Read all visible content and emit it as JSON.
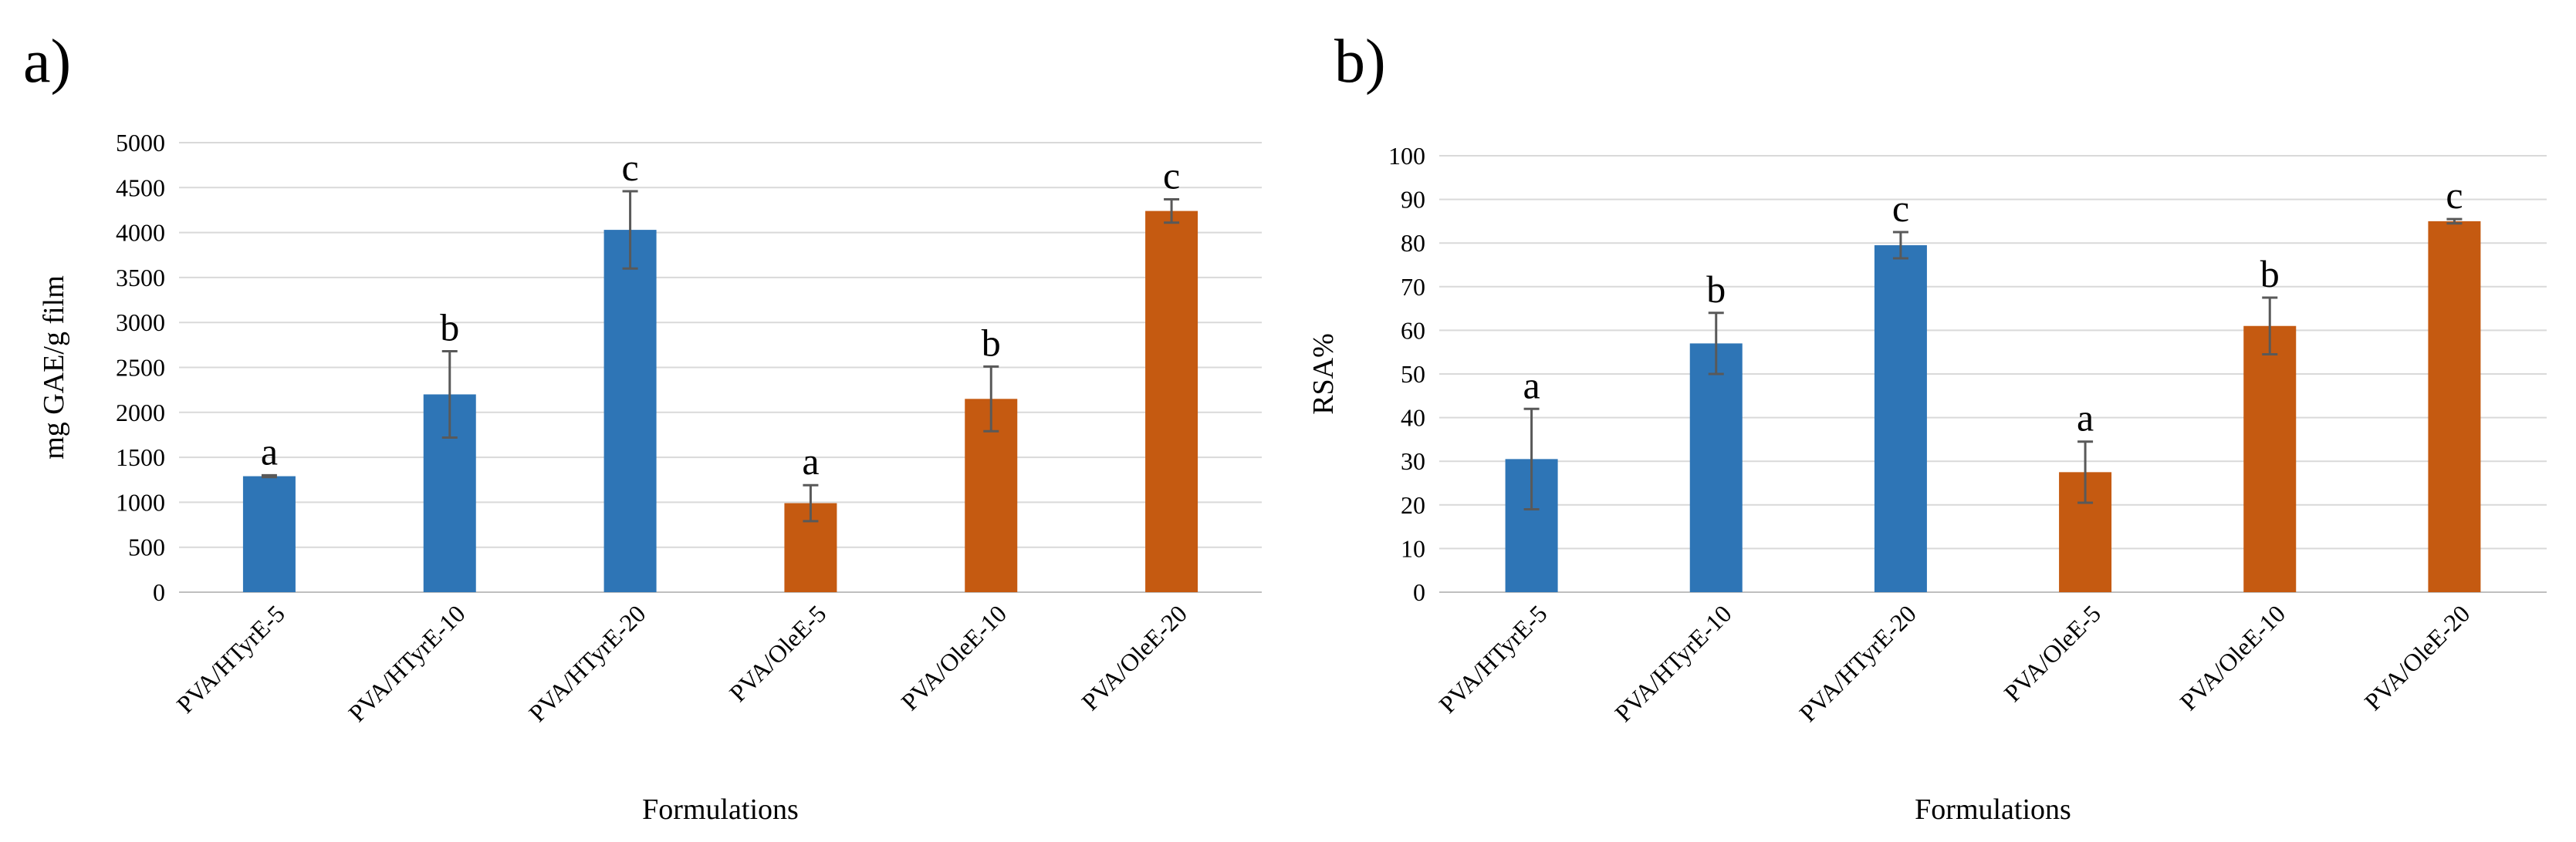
{
  "chart_data": [
    {
      "type": "bar",
      "panel_label": "a)",
      "title": "",
      "xlabel": "Formulations",
      "ylabel": "mg GAE/g film",
      "ylim": [
        0,
        5000
      ],
      "yticks": [
        0,
        500,
        1000,
        1500,
        2000,
        2500,
        3000,
        3500,
        4000,
        4500,
        5000
      ],
      "grid": true,
      "categories": [
        "PVA/HTyrE-5",
        "PVA/HTyrE-10",
        "PVA/HTyrE-20",
        "PVA/OleE-5",
        "PVA/OleE-10",
        "PVA/OleE-20"
      ],
      "values": [
        1290,
        2200,
        4030,
        990,
        2150,
        4240
      ],
      "errors": [
        10,
        480,
        430,
        200,
        360,
        130
      ],
      "letters": [
        "a",
        "b",
        "c",
        "a",
        "b",
        "c"
      ],
      "colors": [
        "#2E75B6",
        "#2E75B6",
        "#2E75B6",
        "#C55A11",
        "#C55A11",
        "#C55A11"
      ]
    },
    {
      "type": "bar",
      "panel_label": "b)",
      "title": "",
      "xlabel": "Formulations",
      "ylabel": "RSA%",
      "ylim": [
        0,
        100
      ],
      "yticks": [
        0,
        10,
        20,
        30,
        40,
        50,
        60,
        70,
        80,
        90,
        100
      ],
      "grid": true,
      "categories": [
        "PVA/HTyrE-5",
        "PVA/HTyrE-10",
        "PVA/HTyrE-20",
        "PVA/OleE-5",
        "PVA/OleE-10",
        "PVA/OleE-20"
      ],
      "values": [
        30.5,
        57,
        79.5,
        27.5,
        61,
        85
      ],
      "errors": [
        11.5,
        7,
        3,
        7,
        6.5,
        0.5
      ],
      "letters": [
        "a",
        "b",
        "c",
        "a",
        "b",
        "c"
      ],
      "colors": [
        "#2E75B6",
        "#2E75B6",
        "#2E75B6",
        "#C55A11",
        "#C55A11",
        "#C55A11"
      ]
    }
  ]
}
